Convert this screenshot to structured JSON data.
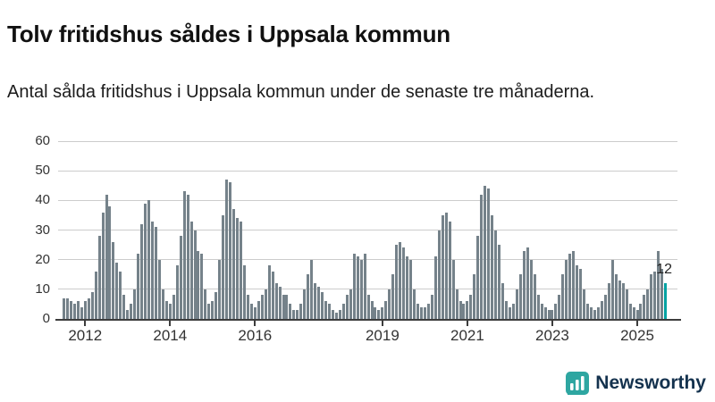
{
  "page": {
    "title": "Tolv fritidshus såldes i Uppsala kommun",
    "subtitle": "Antal sålda fritidshus i Uppsala kommun under de senaste tre månaderna."
  },
  "branding": {
    "name": "Newsworthy",
    "logo_color": "#2ea6a1",
    "text_color": "#14324e"
  },
  "chart_data": {
    "type": "bar",
    "title": "Tolv fritidshus såldes i Uppsala kommun",
    "subtitle": "Antal sålda fritidshus i Uppsala kommun under de senaste tre månaderna.",
    "xlabel": "",
    "ylabel": "",
    "ylim": [
      0,
      60
    ],
    "yticks": [
      0,
      10,
      20,
      30,
      40,
      50,
      60
    ],
    "grid": "horizontal",
    "legend": "none",
    "bar_color": "#75828a",
    "frequency": "monthly",
    "xtick_years": [
      2012,
      2014,
      2016,
      2019,
      2021,
      2023,
      2025
    ],
    "monthly": [
      {
        "year": 2011,
        "from_month": 7,
        "values": [
          7,
          7,
          6,
          5,
          6,
          4
        ]
      },
      {
        "year": 2012,
        "from_month": 1,
        "values": [
          6,
          7,
          9,
          16,
          28,
          36,
          42,
          38,
          26,
          19,
          16,
          8
        ]
      },
      {
        "year": 2013,
        "from_month": 1,
        "values": [
          3,
          5,
          10,
          22,
          32,
          39,
          40,
          33,
          31,
          20,
          10,
          6
        ]
      },
      {
        "year": 2014,
        "from_month": 1,
        "values": [
          5,
          8,
          18,
          28,
          43,
          42,
          33,
          30,
          23,
          22,
          10,
          5
        ]
      },
      {
        "year": 2015,
        "from_month": 1,
        "values": [
          6,
          9,
          20,
          35,
          47,
          46,
          37,
          34,
          33,
          18,
          8,
          5
        ]
      },
      {
        "year": 2016,
        "from_month": 1,
        "values": [
          4,
          6,
          8,
          10,
          18,
          16,
          12,
          11,
          8,
          8,
          5,
          3
        ]
      },
      {
        "year": 2017,
        "from_month": 1,
        "values": [
          3,
          5,
          10,
          15,
          20,
          12,
          11,
          9,
          6,
          5,
          3,
          2
        ]
      },
      {
        "year": 2018,
        "from_month": 1,
        "values": [
          3,
          5,
          8,
          10,
          22,
          21,
          20,
          22,
          8,
          6,
          4,
          3
        ]
      },
      {
        "year": 2019,
        "from_month": 1,
        "values": [
          4,
          6,
          10,
          15,
          25,
          26,
          24,
          21,
          20,
          10,
          5,
          4
        ]
      },
      {
        "year": 2020,
        "from_month": 1,
        "values": [
          4,
          5,
          8,
          21,
          30,
          35,
          36,
          33,
          20,
          10,
          6,
          5
        ]
      },
      {
        "year": 2021,
        "from_month": 1,
        "values": [
          6,
          8,
          15,
          28,
          42,
          45,
          44,
          35,
          30,
          25,
          12,
          6
        ]
      },
      {
        "year": 2022,
        "from_month": 1,
        "values": [
          4,
          5,
          10,
          15,
          23,
          24,
          20,
          15,
          8,
          5,
          4,
          3
        ]
      },
      {
        "year": 2023,
        "from_month": 1,
        "values": [
          3,
          5,
          8,
          15,
          20,
          22,
          23,
          18,
          17,
          10,
          5,
          4
        ]
      },
      {
        "year": 2024,
        "from_month": 1,
        "values": [
          3,
          4,
          6,
          8,
          12,
          20,
          15,
          13,
          12,
          10,
          5,
          4
        ]
      },
      {
        "year": 2025,
        "from_month": 1,
        "values": [
          3,
          5,
          8,
          10,
          15,
          16,
          23,
          17,
          12
        ]
      }
    ],
    "highlight": {
      "position": "last",
      "value": 12,
      "label": "12",
      "color": "#00a2a2"
    }
  }
}
